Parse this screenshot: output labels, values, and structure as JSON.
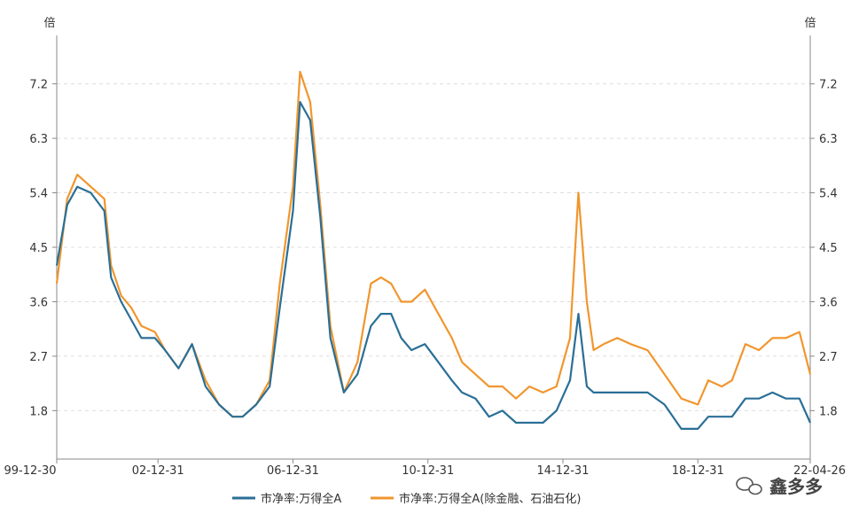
{
  "chart_data": {
    "type": "line",
    "y_unit_left": "倍",
    "y_unit_right": "倍",
    "yticks": [
      1.8,
      2.7,
      3.6,
      4.5,
      5.4,
      6.3,
      7.2
    ],
    "ytick_labels": [
      "1.8",
      "2.7",
      "3.6",
      "4.5",
      "5.4",
      "6.3",
      "7.2"
    ],
    "ylim": [
      1.0,
      8.0
    ],
    "grid": true,
    "x_tick_labels": [
      "99-12-30",
      "02-12-31",
      "06-12-31",
      "10-12-31",
      "14-12-31",
      "18-12-31",
      "22-04-26"
    ],
    "x_tick_years": [
      1999.99,
      2002.99,
      2006.99,
      2010.99,
      2014.99,
      2018.99,
      2022.32
    ],
    "xlim": [
      1999.99,
      2022.32
    ],
    "legend_position": "bottom",
    "series": [
      {
        "name": "市净率:万得全A",
        "color": "#2a6f97",
        "x": [
          1999.99,
          2000.3,
          2000.6,
          2001.0,
          2001.4,
          2001.6,
          2001.9,
          2002.2,
          2002.5,
          2002.9,
          2003.2,
          2003.6,
          2004.0,
          2004.4,
          2004.8,
          2005.2,
          2005.5,
          2005.9,
          2006.3,
          2006.6,
          2006.99,
          2007.2,
          2007.5,
          2007.8,
          2008.1,
          2008.5,
          2008.9,
          2009.3,
          2009.6,
          2009.9,
          2010.2,
          2010.5,
          2010.9,
          2011.3,
          2011.7,
          2012.0,
          2012.4,
          2012.8,
          2013.2,
          2013.6,
          2014.0,
          2014.4,
          2014.8,
          2015.2,
          2015.45,
          2015.7,
          2015.9,
          2016.2,
          2016.6,
          2017.0,
          2017.5,
          2018.0,
          2018.5,
          2018.99,
          2019.3,
          2019.7,
          2020.0,
          2020.4,
          2020.8,
          2021.2,
          2021.6,
          2022.0,
          2022.32
        ],
        "y": [
          4.2,
          5.2,
          5.5,
          5.4,
          5.1,
          4.0,
          3.6,
          3.3,
          3.0,
          3.0,
          2.8,
          2.5,
          2.9,
          2.2,
          1.9,
          1.7,
          1.7,
          1.9,
          2.2,
          3.5,
          5.1,
          6.9,
          6.6,
          5.0,
          3.0,
          2.1,
          2.4,
          3.2,
          3.4,
          3.4,
          3.0,
          2.8,
          2.9,
          2.6,
          2.3,
          2.1,
          2.0,
          1.7,
          1.8,
          1.6,
          1.6,
          1.6,
          1.8,
          2.3,
          3.4,
          2.2,
          2.1,
          2.1,
          2.1,
          2.1,
          2.1,
          1.9,
          1.5,
          1.5,
          1.7,
          1.7,
          1.7,
          2.0,
          2.0,
          2.1,
          2.0,
          2.0,
          1.6
        ]
      },
      {
        "name": "市净率:万得全A(除金融、石油石化)",
        "color": "#f0962e",
        "x": [
          1999.99,
          2000.3,
          2000.6,
          2001.0,
          2001.4,
          2001.6,
          2001.9,
          2002.2,
          2002.5,
          2002.9,
          2003.2,
          2003.6,
          2004.0,
          2004.4,
          2004.8,
          2005.2,
          2005.5,
          2005.9,
          2006.3,
          2006.6,
          2006.99,
          2007.2,
          2007.5,
          2007.8,
          2008.1,
          2008.5,
          2008.9,
          2009.3,
          2009.6,
          2009.9,
          2010.2,
          2010.5,
          2010.9,
          2011.3,
          2011.7,
          2012.0,
          2012.4,
          2012.8,
          2013.2,
          2013.6,
          2014.0,
          2014.4,
          2014.8,
          2015.2,
          2015.45,
          2015.7,
          2015.9,
          2016.2,
          2016.6,
          2017.0,
          2017.5,
          2018.0,
          2018.5,
          2018.99,
          2019.3,
          2019.7,
          2020.0,
          2020.4,
          2020.8,
          2021.2,
          2021.6,
          2022.0,
          2022.32
        ],
        "y": [
          3.9,
          5.3,
          5.7,
          5.5,
          5.3,
          4.2,
          3.7,
          3.5,
          3.2,
          3.1,
          2.8,
          2.5,
          2.9,
          2.3,
          1.9,
          1.7,
          1.7,
          1.9,
          2.3,
          3.9,
          5.5,
          7.4,
          6.9,
          5.2,
          3.2,
          2.1,
          2.6,
          3.9,
          4.0,
          3.9,
          3.6,
          3.6,
          3.8,
          3.4,
          3.0,
          2.6,
          2.4,
          2.2,
          2.2,
          2.0,
          2.2,
          2.1,
          2.2,
          3.0,
          5.4,
          3.6,
          2.8,
          2.9,
          3.0,
          2.9,
          2.8,
          2.4,
          2.0,
          1.9,
          2.3,
          2.2,
          2.3,
          2.9,
          2.8,
          3.0,
          3.0,
          3.1,
          2.4
        ]
      }
    ]
  },
  "watermark": {
    "text": "鑫多多",
    "icon": "wechat-icon"
  }
}
